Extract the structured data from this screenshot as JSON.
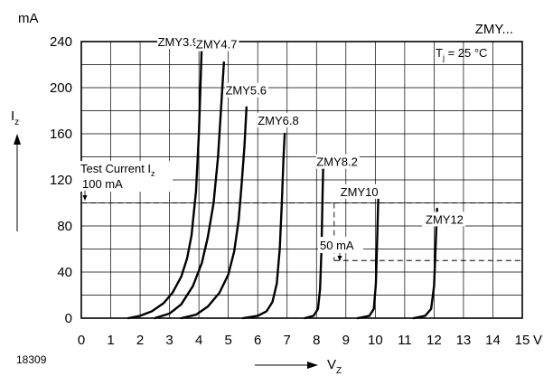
{
  "chart_data": {
    "type": "line",
    "title": "ZMY...",
    "subtitle_parts": [
      "T",
      "j",
      " = 25 °C"
    ],
    "figure_id": "18309",
    "y_unit": "mA",
    "x_unit": "V",
    "ylabel_parts": [
      "I",
      "z"
    ],
    "xlabel_parts": [
      "V",
      "Z"
    ],
    "xlim": [
      0,
      15
    ],
    "ylim": [
      0,
      240
    ],
    "x_ticks": [
      "0",
      "1",
      "2",
      "3",
      "4",
      "5",
      "6",
      "7",
      "8",
      "9",
      "10",
      "11",
      "12",
      "13",
      "14",
      "15"
    ],
    "y_ticks": [
      "0",
      "40",
      "80",
      "120",
      "160",
      "200",
      "240"
    ],
    "grid": true,
    "annotations": {
      "test_current_parts": [
        "Test Current I",
        "z"
      ],
      "test_current_value": "100 mA",
      "test_current_y": 100,
      "secondary_value": "50 mA",
      "secondary_y": 50,
      "secondary_x_start": 8.6
    },
    "series": [
      {
        "name": "ZMY3.9",
        "label_x": 4.0,
        "label_y": 236,
        "points": [
          [
            1.6,
            0
          ],
          [
            2.0,
            2
          ],
          [
            2.4,
            6
          ],
          [
            2.8,
            13
          ],
          [
            3.1,
            22
          ],
          [
            3.4,
            36
          ],
          [
            3.6,
            52
          ],
          [
            3.75,
            72
          ],
          [
            3.9,
            110
          ],
          [
            4.0,
            160
          ],
          [
            4.05,
            200
          ],
          [
            4.1,
            240
          ]
        ]
      },
      {
        "name": "ZMY4.7",
        "label_x": 5.3,
        "label_y": 234,
        "points": [
          [
            2.5,
            0
          ],
          [
            3.0,
            4
          ],
          [
            3.4,
            12
          ],
          [
            3.8,
            28
          ],
          [
            4.1,
            48
          ],
          [
            4.3,
            70
          ],
          [
            4.5,
            100
          ],
          [
            4.65,
            140
          ],
          [
            4.75,
            180
          ],
          [
            4.85,
            222
          ]
        ]
      },
      {
        "name": "ZMY5.6",
        "label_x": 6.3,
        "label_y": 194,
        "points": [
          [
            3.4,
            0
          ],
          [
            3.9,
            3
          ],
          [
            4.3,
            10
          ],
          [
            4.7,
            22
          ],
          [
            5.0,
            38
          ],
          [
            5.2,
            58
          ],
          [
            5.35,
            85
          ],
          [
            5.45,
            115
          ],
          [
            5.55,
            150
          ],
          [
            5.62,
            183
          ]
        ]
      },
      {
        "name": "ZMY6.8",
        "label_x": 7.4,
        "label_y": 168,
        "points": [
          [
            5.5,
            0
          ],
          [
            6.0,
            2
          ],
          [
            6.3,
            6
          ],
          [
            6.5,
            14
          ],
          [
            6.65,
            30
          ],
          [
            6.75,
            60
          ],
          [
            6.82,
            100
          ],
          [
            6.88,
            140
          ],
          [
            6.92,
            160
          ]
        ]
      },
      {
        "name": "ZMY8.2",
        "label_x": 9.4,
        "label_y": 132,
        "points": [
          [
            7.6,
            0
          ],
          [
            7.9,
            2
          ],
          [
            8.05,
            8
          ],
          [
            8.12,
            25
          ],
          [
            8.17,
            60
          ],
          [
            8.2,
            100
          ],
          [
            8.23,
            133
          ]
        ]
      },
      {
        "name": "ZMY10",
        "label_x": 10.1,
        "label_y": 106,
        "points": [
          [
            9.4,
            0
          ],
          [
            9.8,
            2
          ],
          [
            9.95,
            8
          ],
          [
            10.02,
            30
          ],
          [
            10.06,
            65
          ],
          [
            10.1,
            103
          ]
        ]
      },
      {
        "name": "ZMY12",
        "label_x": 13.0,
        "label_y": 82,
        "points": [
          [
            11.3,
            0
          ],
          [
            11.7,
            2
          ],
          [
            11.9,
            8
          ],
          [
            12.0,
            28
          ],
          [
            12.05,
            60
          ],
          [
            12.1,
            95
          ]
        ]
      }
    ]
  }
}
